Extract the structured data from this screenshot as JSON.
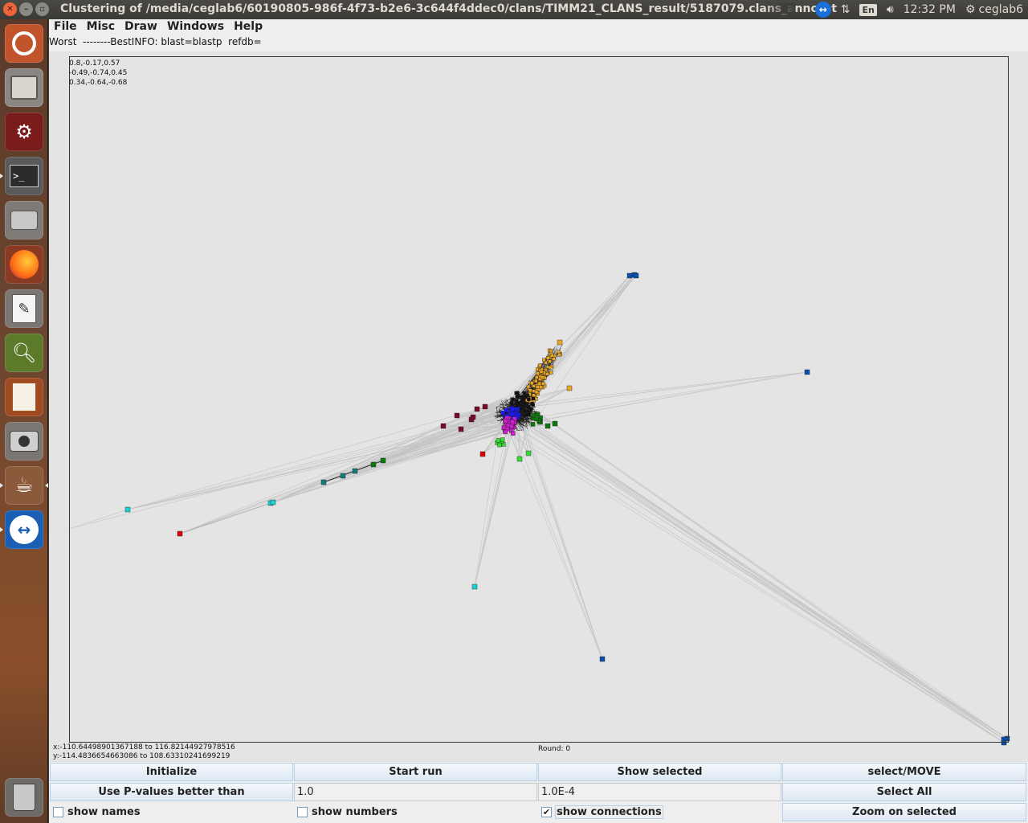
{
  "window": {
    "title": "Clustering of /media/ceglab6/60190805-986f-4f73-b2e6-3c644f4ddec0/clans/TIMM21_CLANS_result/5187079.clans_annotat"
  },
  "indicators": {
    "keyboard": "En",
    "time": "12:32 PM",
    "user": "ceglab6"
  },
  "launcher": {
    "apps": [
      {
        "name": "ubuntu-dash",
        "icon": "ubuntu-logo-icon"
      },
      {
        "name": "files",
        "icon": "file-cabinet-icon"
      },
      {
        "name": "system-settings",
        "icon": "settings-wrench-icon"
      },
      {
        "name": "terminal",
        "icon": "terminal-icon"
      },
      {
        "name": "disks",
        "icon": "hard-disk-icon"
      },
      {
        "name": "firefox",
        "icon": "firefox-icon"
      },
      {
        "name": "text-editor",
        "icon": "text-editor-icon"
      },
      {
        "name": "system-monitor",
        "icon": "system-monitor-icon"
      },
      {
        "name": "impress",
        "icon": "presentation-icon"
      },
      {
        "name": "camera",
        "icon": "camera-icon"
      },
      {
        "name": "java",
        "icon": "java-icon"
      },
      {
        "name": "teamviewer",
        "icon": "teamviewer-icon"
      },
      {
        "name": "trash",
        "icon": "trash-icon"
      }
    ]
  },
  "menubar": {
    "items": [
      "File",
      "Misc",
      "Draw",
      "Windows",
      "Help"
    ]
  },
  "info_line": "Worst  --------BestINFO: blast=blastp  refdb=",
  "rotation": [
    "0.8,-0.17,0.57",
    "-0.49,-0.74,0.45",
    "0.34,-0.64,-0.68"
  ],
  "ranges": {
    "x": "x:-110.64498901367188 to 116.82144927978516",
    "y": "y:-114.4836654663086 to 108.63310241699219"
  },
  "round": "Round: 0",
  "controls": {
    "initialize": "Initialize",
    "start_run": "Start run",
    "show_selected": "Show selected",
    "select_move": "select/MOVE",
    "use_pvalues": "Use P-values better than",
    "pvalue_field": "1.0",
    "evalue_field": "1.0E-4",
    "select_all": "Select All",
    "show_names": "show names",
    "show_numbers": "show numbers",
    "show_connections": "show connections",
    "show_connections_checked": true,
    "show_names_checked": false,
    "show_numbers_checked": false,
    "zoom_selected": "Zoom on selected"
  },
  "colors": {
    "blue_dark": "#0a4fb0",
    "orange": "#e8a623",
    "maroon": "#7a0a2a",
    "green_dark": "#0a7a0a",
    "green_light": "#33dd33",
    "magenta": "#d21cd2",
    "blue": "#1a1aff",
    "cyan": "#1ecfd8",
    "teal": "#117a7a",
    "red": "#e00000"
  }
}
